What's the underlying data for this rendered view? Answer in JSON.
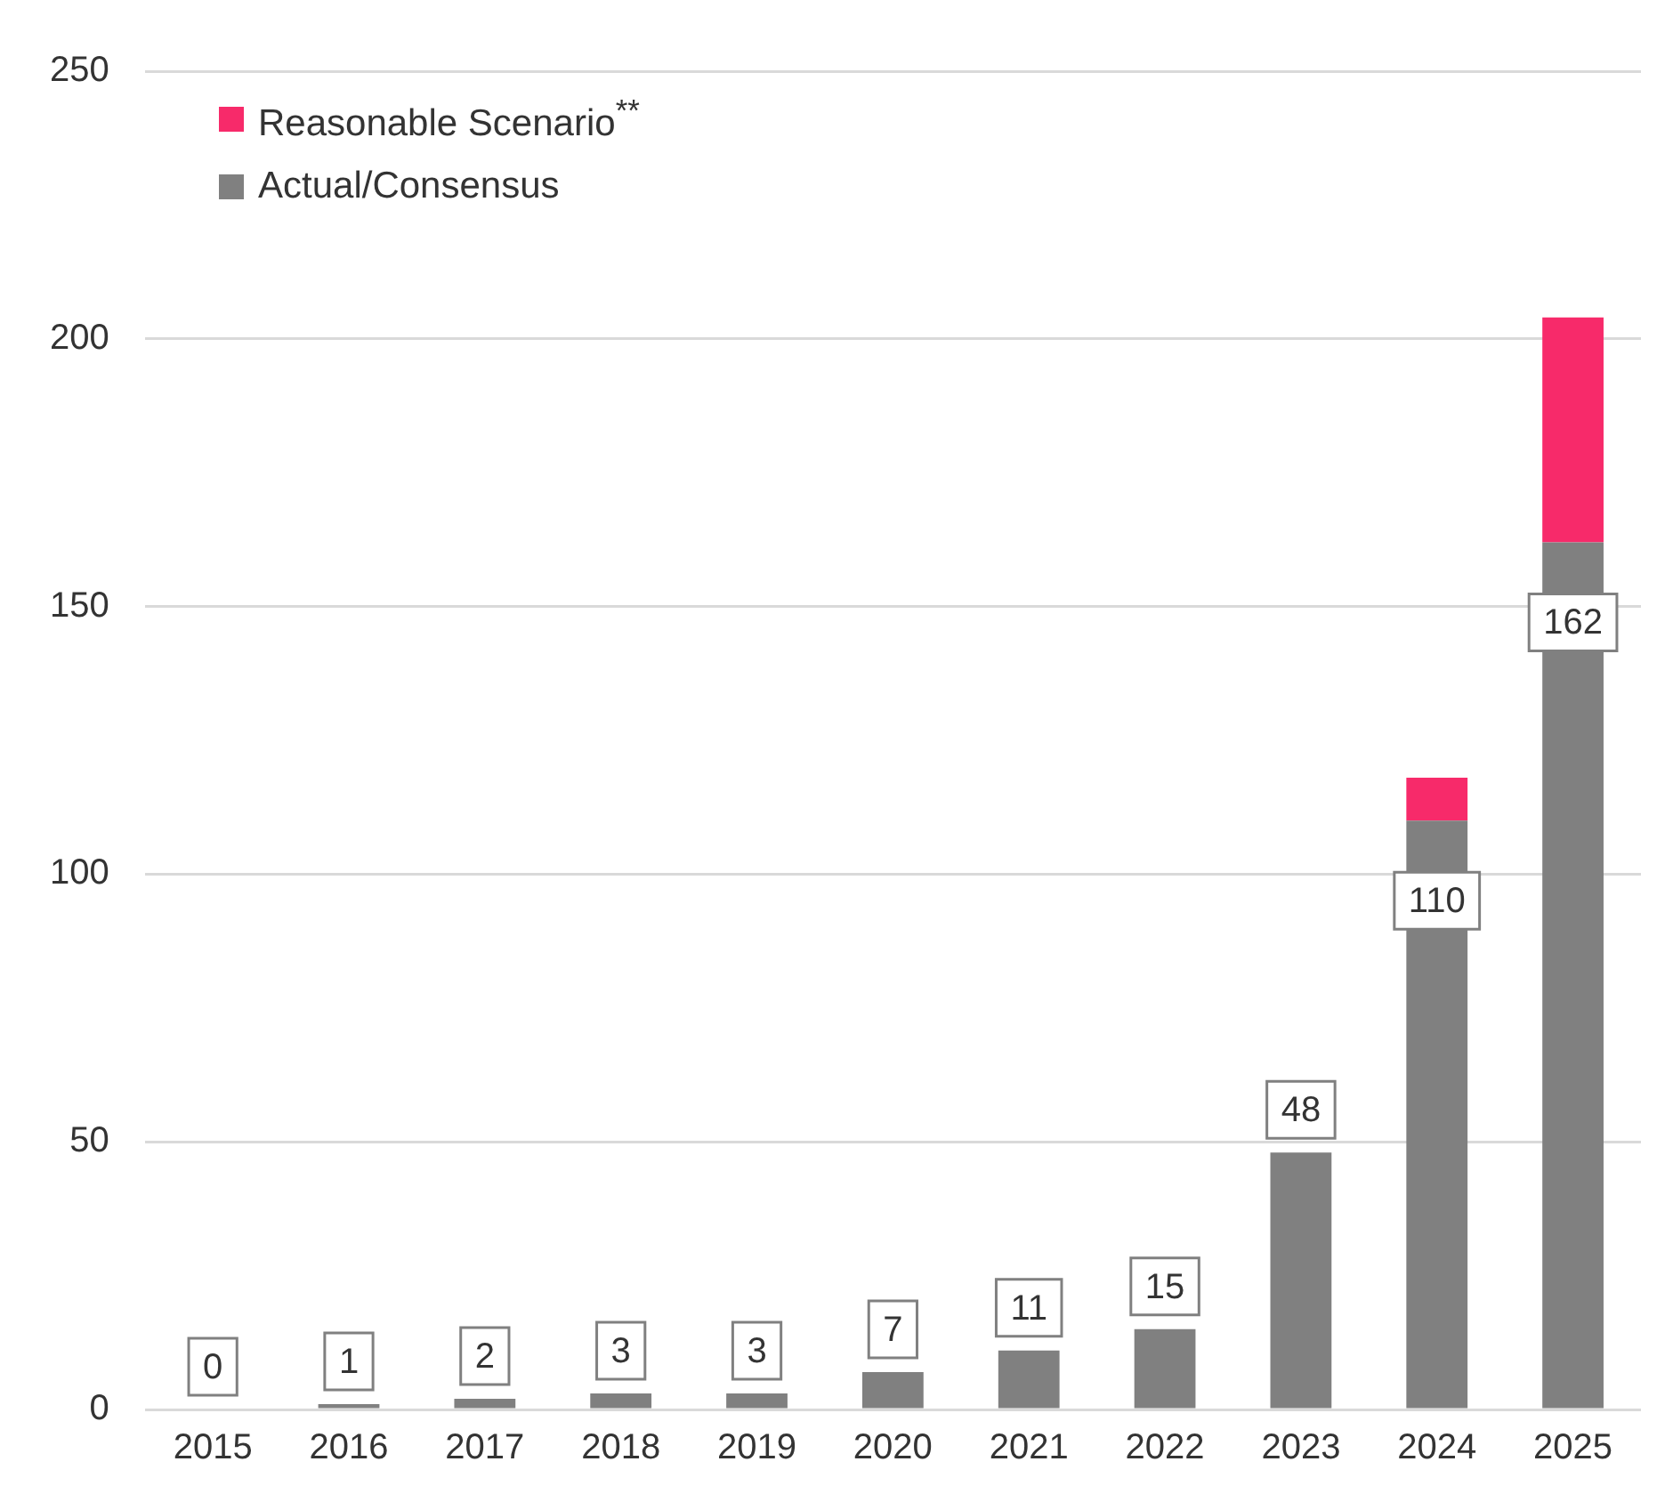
{
  "chart_data": {
    "type": "bar",
    "stacked": true,
    "categories": [
      "2015",
      "2016",
      "2017",
      "2018",
      "2019",
      "2020",
      "2021",
      "2022",
      "2023",
      "2024",
      "2025"
    ],
    "series": [
      {
        "name": "Actual/Consensus",
        "color": "#808080",
        "values": [
          0,
          1,
          2,
          3,
          3,
          7,
          11,
          15,
          48,
          110,
          162
        ],
        "value_labels": [
          "0",
          "1",
          "2",
          "3",
          "3",
          "7",
          "11",
          "15",
          "48",
          "110",
          "162"
        ]
      },
      {
        "name": "Reasonable Scenario$^{**}$",
        "color": "#f72a6a",
        "values": [
          null,
          null,
          null,
          null,
          null,
          null,
          null,
          null,
          null,
          8,
          42
        ]
      }
    ],
    "ylim": [
      0,
      250
    ],
    "yticks": [
      0,
      50,
      100,
      150,
      200,
      250
    ],
    "grid": "y",
    "legend": "top left"
  }
}
